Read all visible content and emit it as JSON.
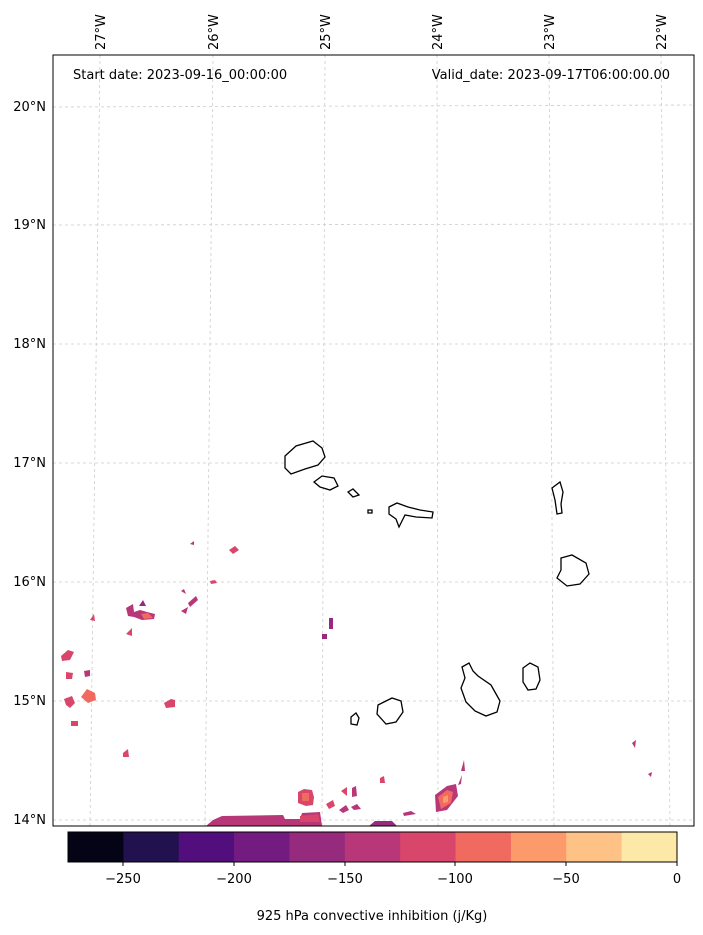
{
  "header": {
    "start_date": "Start date: 2023-09-16_00:00:00",
    "valid_date": "Valid_date: 2023-09-17T06:00:00.00"
  },
  "axes": {
    "lon_labels": [
      "27°W",
      "26°W",
      "25°W",
      "24°W",
      "23°W",
      "22°W"
    ],
    "lat_labels": [
      "20°N",
      "19°N",
      "18°N",
      "17°N",
      "16°N",
      "15°N",
      "14°N"
    ]
  },
  "colorbar": {
    "label": "925 hPa convective inhibition (j/Kg)",
    "ticks": [
      "−250",
      "−200",
      "−150",
      "−100",
      "−50",
      "0"
    ],
    "colors": [
      "#050417",
      "#21114e",
      "#520e7c",
      "#741b81",
      "#962a7d",
      "#b83779",
      "#d9466b",
      "#f16a60",
      "#fc9a6c",
      "#fec287",
      "#fde9a7"
    ]
  },
  "islands": [
    "Santo Antão",
    "São Vicente",
    "Santa Luzia",
    "São Nicolau",
    "Sal",
    "Boa Vista",
    "Maio",
    "Santiago",
    "Fogo",
    "Brava"
  ]
}
